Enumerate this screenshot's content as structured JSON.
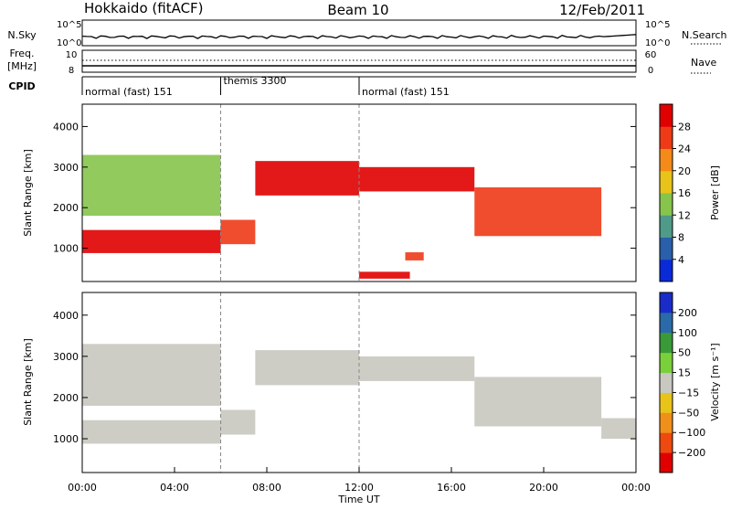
{
  "header": {
    "station": "Hokkaido (fitACF)",
    "beam": "Beam 10",
    "date": "12/Feb/2011"
  },
  "top_panels": {
    "nsky_label": "N.Sky",
    "nsky_ticks": [
      "10^5",
      "10^0"
    ],
    "nsearch_label": "N.Search",
    "nsearch_ticks": [
      "10^5",
      "10^0"
    ],
    "freq_label_1": "Freq.",
    "freq_label_2": "[MHz]",
    "freq_ticks": [
      "10",
      "8"
    ],
    "nave_label": "Nave",
    "nave_ticks": [
      "60",
      "0"
    ],
    "cpid_label": "CPID",
    "cpid_segments": [
      {
        "label": "normal (fast) 151",
        "start_h": 0,
        "end_h": 6
      },
      {
        "label": "themis 3300",
        "start_h": 6,
        "end_h": 12
      },
      {
        "label": "normal (fast) 151",
        "start_h": 12,
        "end_h": 24
      }
    ]
  },
  "chart_data": [
    {
      "type": "heatmap",
      "name": "power",
      "ylabel": "Slant Range [km]",
      "xlabel": "",
      "ylim": [
        180,
        4550
      ],
      "xlim": [
        0,
        24
      ],
      "y_ticks": [
        "1000",
        "2000",
        "3000",
        "4000"
      ],
      "colorbar": {
        "label": "Power [dB]",
        "ticks": [
          "4",
          "8",
          "12",
          "16",
          "20",
          "24",
          "28"
        ],
        "colors": [
          "#0a2ad8",
          "#2a5faa",
          "#4f9a88",
          "#86c44c",
          "#e8c31a",
          "#f38a1a",
          "#ee3a17",
          "#e00000"
        ]
      },
      "bands": [
        {
          "start_h": 0.0,
          "end_h": 6.0,
          "low_km": 880,
          "high_km": 1450,
          "level": 28
        },
        {
          "start_h": 6.0,
          "end_h": 7.5,
          "low_km": 1100,
          "high_km": 1700,
          "level": 24
        },
        {
          "start_h": 7.5,
          "end_h": 12.0,
          "low_km": 2300,
          "high_km": 3150,
          "level": 28
        },
        {
          "start_h": 12.0,
          "end_h": 17.0,
          "low_km": 2400,
          "high_km": 3000,
          "level": 28
        },
        {
          "start_h": 17.0,
          "end_h": 22.5,
          "low_km": 1300,
          "high_km": 2500,
          "level": 24
        },
        {
          "start_h": 0.0,
          "end_h": 6.0,
          "low_km": 1800,
          "high_km": 3300,
          "level": 12
        },
        {
          "start_h": 12.0,
          "end_h": 14.2,
          "low_km": 250,
          "high_km": 420,
          "level": 28
        },
        {
          "start_h": 14.0,
          "end_h": 14.8,
          "low_km": 700,
          "high_km": 900,
          "level": 24
        }
      ]
    },
    {
      "type": "heatmap",
      "name": "velocity",
      "ylabel": "Slant Range [km]",
      "xlabel": "Time UT",
      "ylim": [
        180,
        4550
      ],
      "xlim": [
        0,
        24
      ],
      "y_ticks": [
        "1000",
        "2000",
        "3000",
        "4000"
      ],
      "x_ticks": [
        "00:00",
        "04:00",
        "08:00",
        "12:00",
        "16:00",
        "20:00",
        "00:00"
      ],
      "colorbar": {
        "label": "Velocity [m s⁻¹]",
        "ticks": [
          "200",
          "100",
          "50",
          "15",
          "−15",
          "−50",
          "−100",
          "−200"
        ],
        "colors": [
          "#1a2cc8",
          "#2a6aa8",
          "#3a9a3a",
          "#7ad03a",
          "#c8c8c0",
          "#e8c31a",
          "#f0901a",
          "#ee4a10",
          "#e00000"
        ]
      },
      "bands": [
        {
          "start_h": 0.0,
          "end_h": 6.0,
          "low_km": 880,
          "high_km": 1450,
          "level": 0
        },
        {
          "start_h": 6.0,
          "end_h": 7.5,
          "low_km": 1100,
          "high_km": 1700,
          "level": 0
        },
        {
          "start_h": 7.5,
          "end_h": 12.0,
          "low_km": 2300,
          "high_km": 3150,
          "level": 0
        },
        {
          "start_h": 12.0,
          "end_h": 17.0,
          "low_km": 2400,
          "high_km": 3000,
          "level": 0
        },
        {
          "start_h": 17.0,
          "end_h": 22.5,
          "low_km": 1300,
          "high_km": 2500,
          "level": 0
        },
        {
          "start_h": 0.0,
          "end_h": 6.0,
          "low_km": 1800,
          "high_km": 3300,
          "level": 0
        },
        {
          "start_h": 22.5,
          "end_h": 24.0,
          "low_km": 1000,
          "high_km": 1500,
          "level": 0
        }
      ]
    }
  ]
}
